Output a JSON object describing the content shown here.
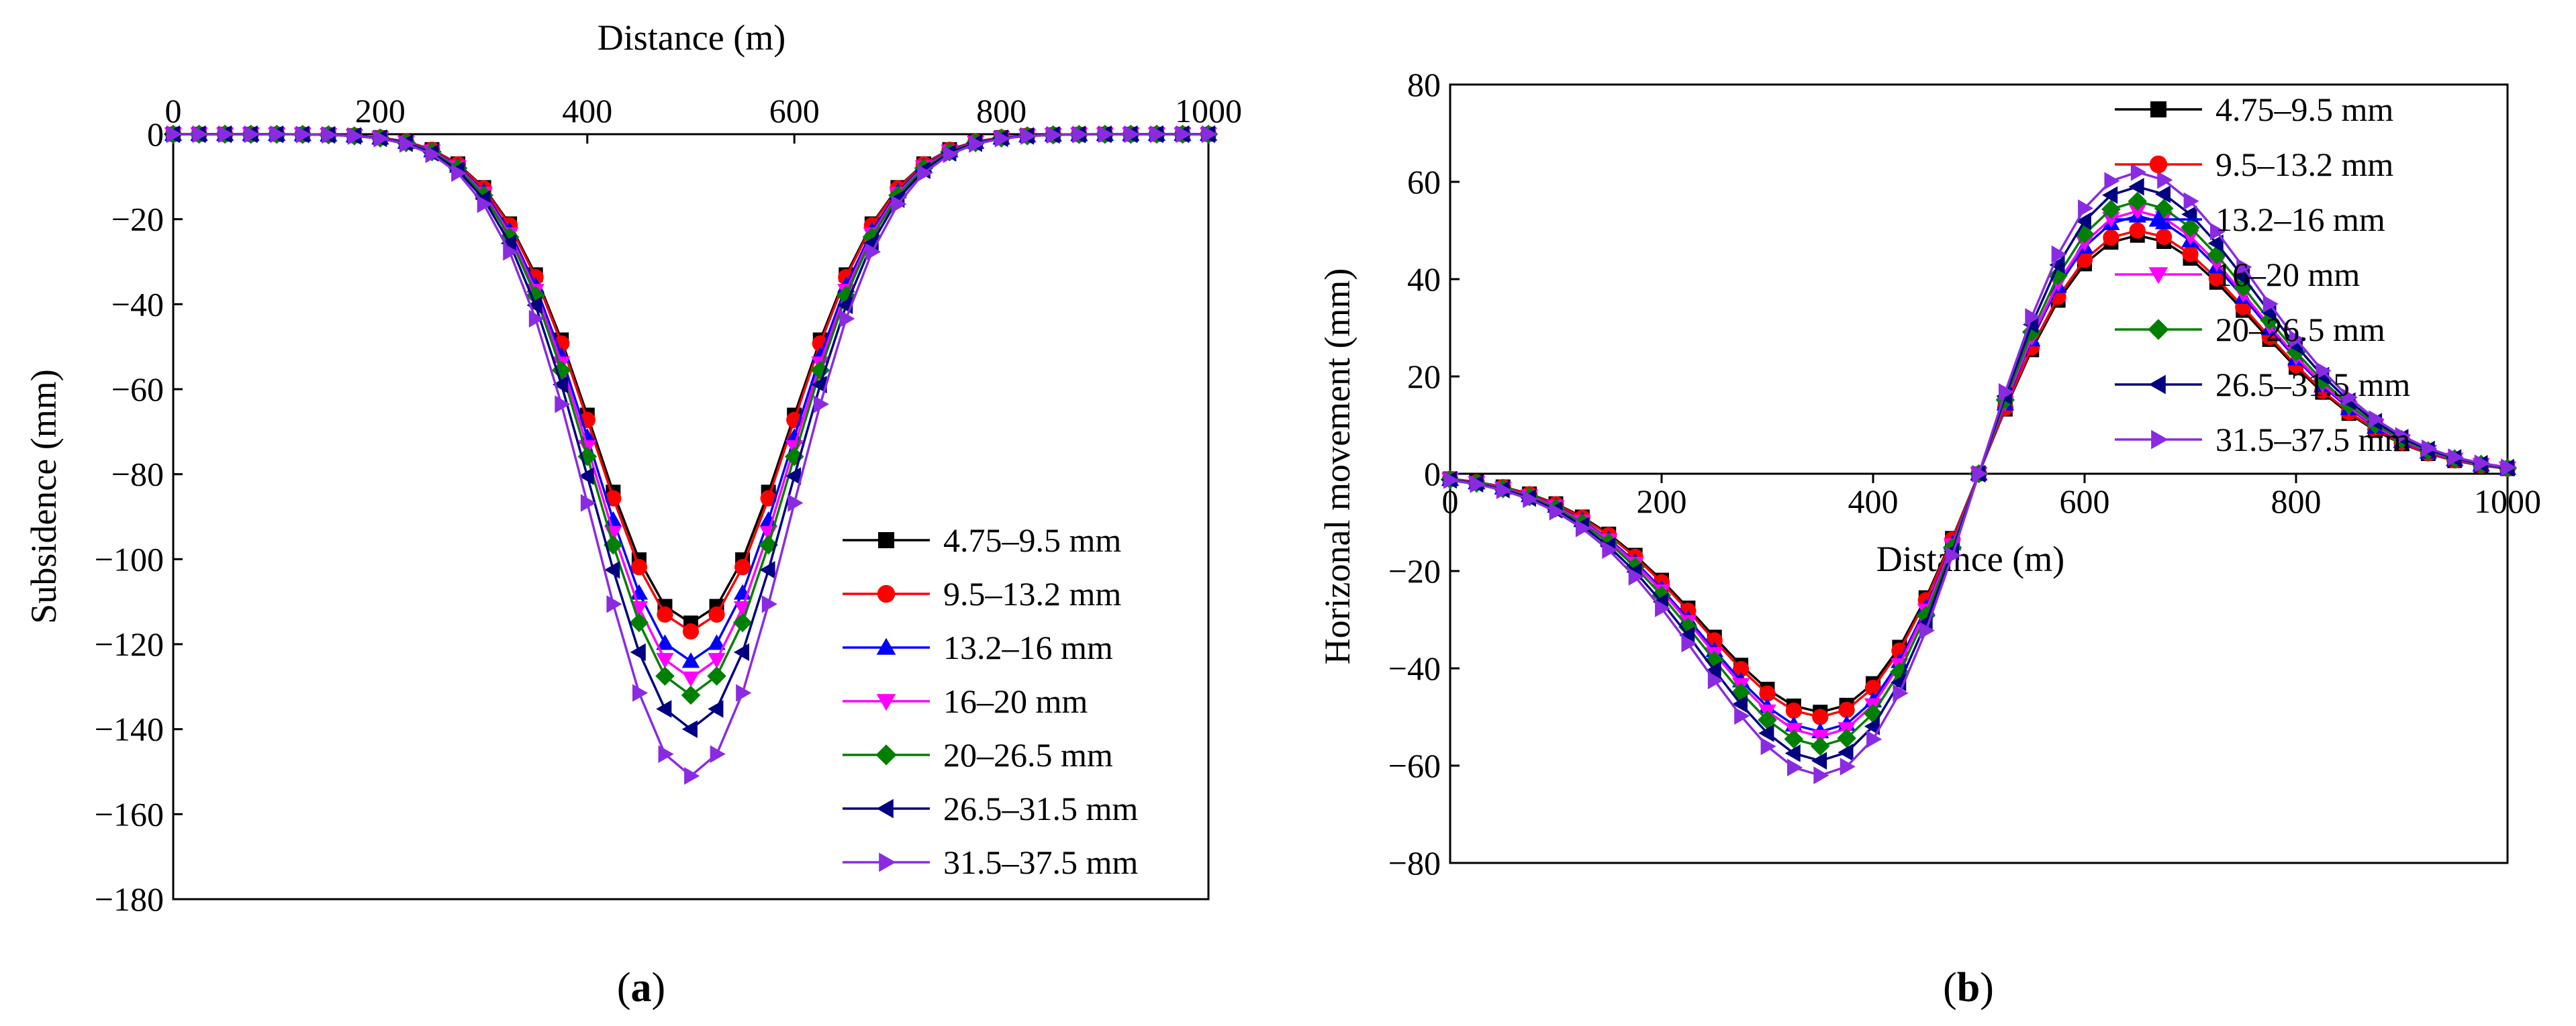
{
  "series_names": [
    "4.75–9.5 mm",
    "9.5–13.2 mm",
    "13.2–16 mm",
    "16–20 mm",
    "20–26.5 mm",
    "26.5–31.5 mm",
    "31.5–37.5 mm"
  ],
  "series_colors": [
    "#000000",
    "#ff0000",
    "#0000ff",
    "#ff00ff",
    "#008000",
    "#000080",
    "#8a2be2"
  ],
  "series_markers": [
    "square",
    "circle",
    "triangle-up",
    "triangle-down",
    "diamond",
    "triangle-left",
    "triangle-right"
  ],
  "panel_labels": {
    "a_open": "(",
    "a_letter": "a",
    "a_close": ")",
    "b_open": "(",
    "b_letter": "b",
    "b_close": ")"
  },
  "chart_data": [
    {
      "type": "line",
      "panel": "a",
      "xlabel": "Distance (m)",
      "ylabel": "Subsidence (mm)",
      "xlim": [
        0,
        1000
      ],
      "ylim": [
        -180,
        0
      ],
      "xticks": [
        0,
        200,
        400,
        600,
        800,
        1000
      ],
      "yticks": [
        0,
        -20,
        -40,
        -60,
        -80,
        -100,
        -120,
        -140,
        -160,
        -180
      ],
      "xaxis_position": "top",
      "legend_position": "bottom-right",
      "grid": false,
      "x": [
        0,
        25,
        50,
        75,
        100,
        125,
        150,
        175,
        200,
        225,
        250,
        275,
        300,
        325,
        350,
        375,
        400,
        425,
        450,
        475,
        500,
        525,
        550,
        575,
        600,
        625,
        650,
        675,
        700,
        725,
        750,
        775,
        800,
        825,
        850,
        875,
        900,
        925,
        950,
        975,
        1000
      ],
      "series": [
        {
          "name": "4.75–9.5 mm",
          "peak": -115
        },
        {
          "name": "9.5–13.2 mm",
          "peak": -117
        },
        {
          "name": "13.2–16 mm",
          "peak": -124
        },
        {
          "name": "16–20 mm",
          "peak": -128
        },
        {
          "name": "20–26.5 mm",
          "peak": -132
        },
        {
          "name": "26.5–31.5 mm",
          "peak": -140
        },
        {
          "name": "31.5–37.5 mm",
          "peak": -151
        }
      ]
    },
    {
      "type": "line",
      "panel": "b",
      "xlabel": "Distance (m)",
      "ylabel": "Horizonal movement (mm)",
      "xlim": [
        0,
        1000
      ],
      "ylim": [
        -80,
        80
      ],
      "xticks": [
        0,
        200,
        400,
        600,
        800,
        1000
      ],
      "yticks": [
        80,
        60,
        40,
        20,
        0,
        -20,
        -40,
        -60,
        -80
      ],
      "xaxis_position": "zero",
      "legend_position": "top-right",
      "grid": false,
      "x": [
        0,
        25,
        50,
        75,
        100,
        125,
        150,
        175,
        200,
        225,
        250,
        275,
        300,
        325,
        350,
        375,
        400,
        425,
        450,
        475,
        500,
        525,
        550,
        575,
        600,
        625,
        650,
        675,
        700,
        725,
        750,
        775,
        800,
        825,
        850,
        875,
        900,
        925,
        950,
        975,
        1000
      ],
      "series": [
        {
          "name": "4.75–9.5 mm",
          "peak": 49
        },
        {
          "name": "9.5–13.2 mm",
          "peak": 50
        },
        {
          "name": "13.2–16 mm",
          "peak": 53
        },
        {
          "name": "16–20 mm",
          "peak": 54
        },
        {
          "name": "20–26.5 mm",
          "peak": 56
        },
        {
          "name": "26.5–31.5 mm",
          "peak": 59
        },
        {
          "name": "31.5–37.5 mm",
          "peak": 62
        }
      ]
    }
  ]
}
